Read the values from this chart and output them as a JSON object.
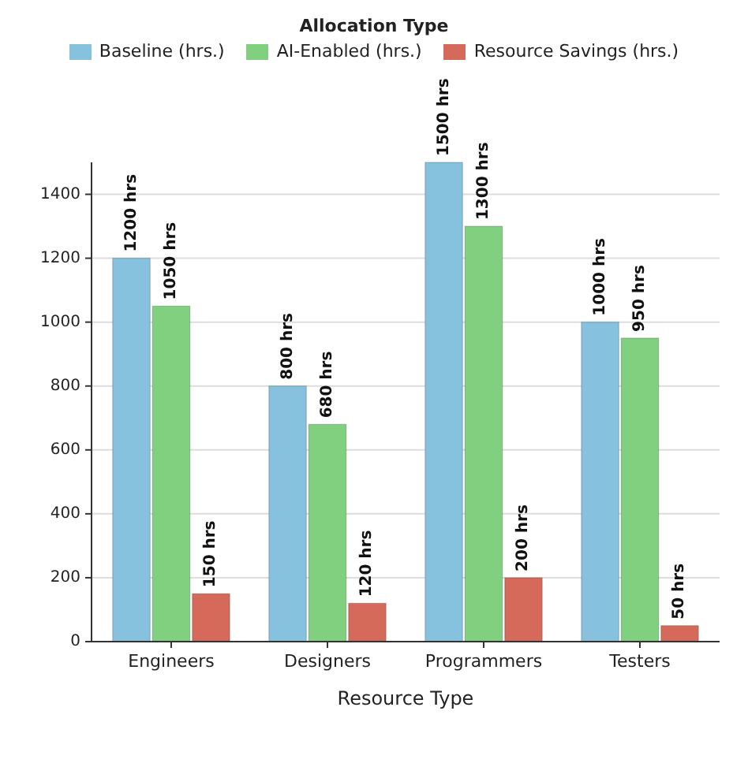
{
  "chart_data": {
    "type": "bar",
    "xlabel": "Resource Type",
    "legend_title": "Allocation Type",
    "legend": "top",
    "grid": "y",
    "categories": [
      "Engineers",
      "Designers",
      "Programmers",
      "Testers"
    ],
    "series": [
      {
        "name": "Baseline (hrs.)",
        "color": "#86c1de",
        "values": [
          1200,
          800,
          1500,
          1000
        ],
        "value_labels": [
          "1200 hrs",
          "800 hrs",
          "1500 hrs",
          "1000 hrs"
        ]
      },
      {
        "name": "AI-Enabled (hrs.)",
        "color": "#80d080",
        "values": [
          1050,
          680,
          1300,
          950
        ],
        "value_labels": [
          "1050 hrs",
          "680 hrs",
          "1300 hrs",
          "950 hrs"
        ]
      },
      {
        "name": "Resource Savings (hrs.)",
        "color": "#d66a5a",
        "values": [
          150,
          120,
          200,
          50
        ],
        "value_labels": [
          "150 hrs",
          "120 hrs",
          "200 hrs",
          "50 hrs"
        ]
      }
    ],
    "ylim": [
      0,
      1500
    ],
    "yticks": [
      0,
      200,
      400,
      600,
      800,
      1000,
      1200,
      1400
    ]
  }
}
